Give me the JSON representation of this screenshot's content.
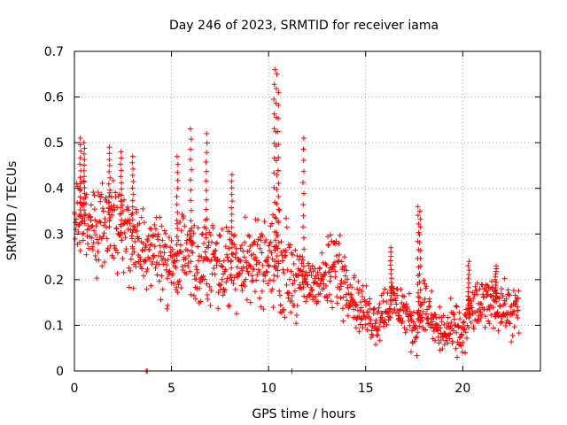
{
  "chart_data": {
    "type": "scatter",
    "title": "Day 246 of 2023, SRMTID for receiver iama",
    "xlabel": "GPS time / hours",
    "ylabel": "SRMTID / TECUs",
    "xlim": [
      0,
      24
    ],
    "ylim": [
      0,
      0.7
    ],
    "xticks": [
      0,
      5,
      10,
      15,
      20
    ],
    "yticks": [
      0,
      0.1,
      0.2,
      0.3,
      0.4,
      0.5,
      0.6,
      0.7
    ],
    "xtick_labels": [
      "0",
      "5",
      "10",
      "15",
      "20"
    ],
    "ytick_labels": [
      "0",
      "0.1",
      "0.2",
      "0.3",
      "0.4",
      "0.5",
      "0.6",
      "0.7"
    ],
    "grid": true,
    "marker": "+",
    "color": "#ff0000",
    "trend": [
      [
        0.0,
        0.3
      ],
      [
        0.5,
        0.34
      ],
      [
        1.0,
        0.3
      ],
      [
        1.5,
        0.31
      ],
      [
        2.0,
        0.32
      ],
      [
        2.5,
        0.3
      ],
      [
        3.0,
        0.29
      ],
      [
        3.5,
        0.27
      ],
      [
        4.0,
        0.28
      ],
      [
        4.5,
        0.26
      ],
      [
        5.0,
        0.23
      ],
      [
        5.5,
        0.25
      ],
      [
        6.0,
        0.24
      ],
      [
        6.5,
        0.22
      ],
      [
        7.0,
        0.27
      ],
      [
        7.5,
        0.22
      ],
      [
        8.0,
        0.24
      ],
      [
        8.5,
        0.25
      ],
      [
        9.0,
        0.23
      ],
      [
        9.5,
        0.25
      ],
      [
        10.0,
        0.24
      ],
      [
        10.5,
        0.24
      ],
      [
        11.0,
        0.22
      ],
      [
        11.5,
        0.2
      ],
      [
        12.0,
        0.19
      ],
      [
        12.5,
        0.2
      ],
      [
        13.0,
        0.2
      ],
      [
        13.5,
        0.23
      ],
      [
        14.0,
        0.2
      ],
      [
        14.5,
        0.15
      ],
      [
        15.0,
        0.13
      ],
      [
        15.5,
        0.11
      ],
      [
        16.0,
        0.14
      ],
      [
        16.5,
        0.15
      ],
      [
        17.0,
        0.13
      ],
      [
        17.5,
        0.09
      ],
      [
        18.0,
        0.15
      ],
      [
        18.5,
        0.1
      ],
      [
        19.0,
        0.08
      ],
      [
        19.5,
        0.09
      ],
      [
        20.0,
        0.08
      ],
      [
        20.5,
        0.14
      ],
      [
        21.0,
        0.14
      ],
      [
        21.5,
        0.16
      ],
      [
        22.0,
        0.14
      ],
      [
        22.5,
        0.13
      ],
      [
        22.9,
        0.13
      ]
    ],
    "spikes": [
      [
        0.3,
        0.51
      ],
      [
        0.5,
        0.5
      ],
      [
        1.8,
        0.49
      ],
      [
        2.4,
        0.48
      ],
      [
        3.0,
        0.47
      ],
      [
        5.3,
        0.47
      ],
      [
        6.0,
        0.53
      ],
      [
        6.8,
        0.52
      ],
      [
        8.1,
        0.43
      ],
      [
        10.3,
        0.66
      ],
      [
        10.4,
        0.65
      ],
      [
        10.5,
        0.61
      ],
      [
        11.8,
        0.51
      ],
      [
        17.8,
        0.35
      ],
      [
        17.7,
        0.36
      ],
      [
        16.3,
        0.27
      ],
      [
        20.3,
        0.24
      ],
      [
        21.7,
        0.23
      ]
    ],
    "zero_points": [
      [
        3.7,
        0.0
      ],
      [
        3.75,
        0.0
      ],
      [
        11.2,
        0.0
      ]
    ]
  }
}
